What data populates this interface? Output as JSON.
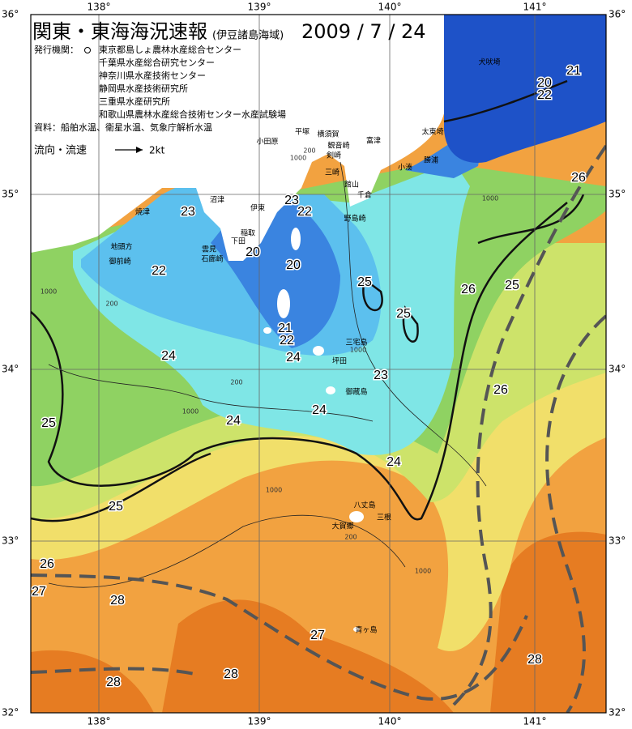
{
  "header": {
    "title": "関東・東海海況速報",
    "subtitle": "(伊豆諸島海域)",
    "date": "2009 / 7 / 24"
  },
  "publishers": {
    "label": "発行機関：",
    "items": [
      "東京都島しょ農林水産総合センター",
      "千葉県水産総合研究センター",
      "神奈川県水産技術センター",
      "静岡県水産技術研究所",
      "三重県水産研究所",
      "和歌山県農林水産総合技術センター水産試験場"
    ]
  },
  "sources": "資料：船舶水温、衛星水温、気象庁解析水温",
  "current_legend": {
    "label": "流向・流速",
    "scale": "2kt"
  },
  "grid": {
    "lon": [
      "138°",
      "139°",
      "140°",
      "141°"
    ],
    "lat": [
      "36°",
      "35°",
      "34°",
      "33°",
      "32°"
    ]
  },
  "contour_labels": [
    21,
    20,
    22,
    26,
    23,
    22,
    23,
    20,
    20,
    22,
    25,
    26,
    25,
    25,
    21,
    22,
    24,
    24,
    23,
    26,
    24,
    24,
    25,
    24,
    25,
    26,
    27,
    28,
    27,
    28,
    28,
    28
  ],
  "depth_labels": [
    "1000",
    "200",
    "1000",
    "200",
    "1000",
    "200",
    "1000",
    "1000",
    "200",
    "1000",
    "1000"
  ],
  "places": [
    "犬吠埼",
    "太東埼",
    "勝浦",
    "小湊",
    "千倉",
    "館山",
    "野島崎",
    "富津",
    "横須賀",
    "観音崎",
    "剣崎",
    "三崎",
    "平塚",
    "小田原",
    "沼津",
    "焼津",
    "伊東",
    "稲取",
    "下田",
    "雲見",
    "石廊崎",
    "地頭方",
    "御前崎",
    "三宅島",
    "坪田",
    "御蔵島",
    "八丈島",
    "三根",
    "大賀郷",
    "青ヶ島"
  ]
}
